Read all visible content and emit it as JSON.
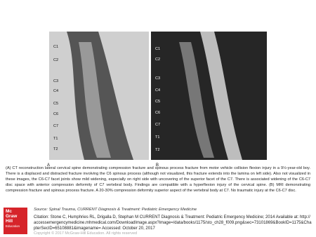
{
  "figure": {
    "panels": [
      {
        "label": "A",
        "levels": [
          "C1",
          "C2",
          "C3",
          "C4",
          "C5",
          "C6",
          "C7",
          "T1",
          "T2"
        ]
      },
      {
        "label": "B",
        "levels": [
          "C1",
          "C2",
          "C3",
          "C4",
          "C5",
          "C6",
          "C7",
          "T1",
          "T2"
        ]
      }
    ],
    "caption": "(A) CT reconstruction lateral cervical spine demonstrating compression fracture and spinous process fracture from motor vehicle collision flexion injury in a 9½-year-old boy. There is a displaced and distracted fracture involving the C6 spinous process (although not visualized, this fracture extends into the lamina on left side). Also not visualized in these images, the C6-C7 facet joints show mild widening, especially on right side with uncovering of the superior facet of the C7. There is associated widening of the C6-C7 disc space with anterior compression deformity of C7 vertebral body. Findings are compatible with a hyperflexion injury of the cervical spine. (B) MRI demonstrating compression fracture and spinous process fracture. A 20-30% compression deformity superior aspect of the vertebral body at C7. No traumatic injury at the C6-C7 disc.",
    "source": "Source: Spinal Trauma, CURRENT Diagnosis & Treatment: Pediatric Emergency Medicine"
  },
  "footer": {
    "logo": [
      "Mc",
      "Graw",
      "Hill",
      "Education"
    ],
    "citation": "Citation: Stone C, Humphries RL, Drigalla D, Stephan M CURRENT Diagnosis & Treatment: Pediatric Emergency Medicine; 2014 Available at: http://accessemergencymedicine.mhmedical.com/DownloadImage.aspx?image=/data/books/1175/sto_ch28_f009.png&sec=73101869&BookID=1175&ChapterSecID=65108881&imagename= Accessed: October 20, 2017",
    "copyright": "Copyright © 2017 McGraw-Hill Education. All rights reserved"
  }
}
